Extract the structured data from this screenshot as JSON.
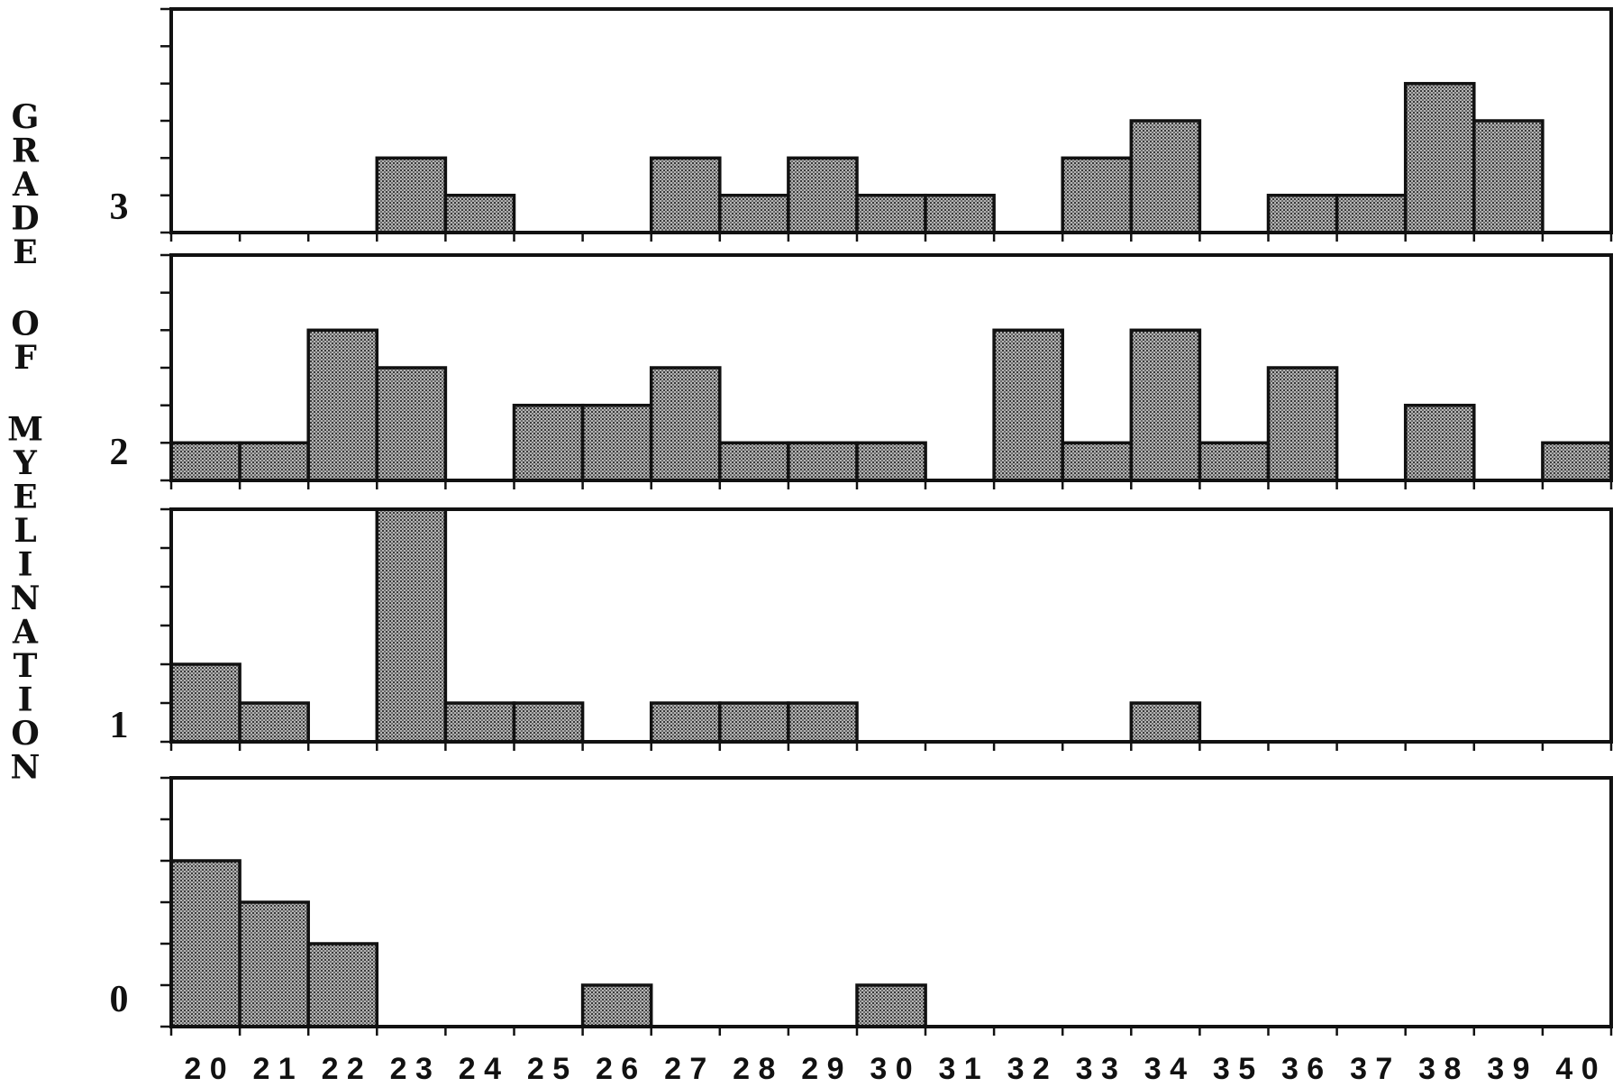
{
  "chart_data": {
    "type": "bar",
    "ylabel": "GRADE OF MYELINATION",
    "categories": [
      "20",
      "21",
      "22",
      "23",
      "24",
      "25",
      "26",
      "27",
      "28",
      "29",
      "30",
      "31",
      "32",
      "33",
      "34",
      "35",
      "36",
      "37",
      "38",
      "39",
      "40"
    ],
    "category_tick_text": [
      "2 0",
      "2 1",
      "2 2",
      "2 3",
      "2 4",
      "2 5",
      "2 6",
      "2 7",
      "2 8",
      "2 9",
      "3 0",
      "3 1",
      "3 2",
      "3 3",
      "3 4",
      "3 5",
      "3 6",
      "3 7",
      "3 8",
      "3 9",
      "4 0"
    ],
    "panels": [
      {
        "grade": "3",
        "values": [
          0,
          0,
          0,
          2,
          1,
          0,
          0,
          2,
          1,
          2,
          1,
          1,
          0,
          2,
          3,
          0,
          1,
          1,
          4,
          3,
          0
        ],
        "ylim": [
          0,
          6
        ]
      },
      {
        "grade": "2",
        "values": [
          1,
          1,
          4,
          3,
          0,
          2,
          2,
          3,
          1,
          1,
          1,
          0,
          4,
          1,
          4,
          1,
          3,
          0,
          2,
          0,
          1
        ],
        "ylim": [
          0,
          6
        ]
      },
      {
        "grade": "1",
        "values": [
          2,
          1,
          0,
          6,
          1,
          1,
          0,
          1,
          1,
          1,
          0,
          0,
          0,
          0,
          1,
          0,
          0,
          0,
          0,
          0,
          0
        ],
        "ylim": [
          0,
          6
        ]
      },
      {
        "grade": "0",
        "values": [
          4,
          3,
          2,
          0,
          0,
          0,
          1,
          0,
          0,
          0,
          1,
          0,
          0,
          0,
          0,
          0,
          0,
          0,
          0,
          0,
          0
        ],
        "ylim": [
          0,
          6
        ]
      }
    ],
    "grid": false,
    "legend": "none"
  },
  "colors": {
    "ink": "#111111",
    "paper": "#ffffff",
    "bar_fill": "#8c8c8c"
  }
}
